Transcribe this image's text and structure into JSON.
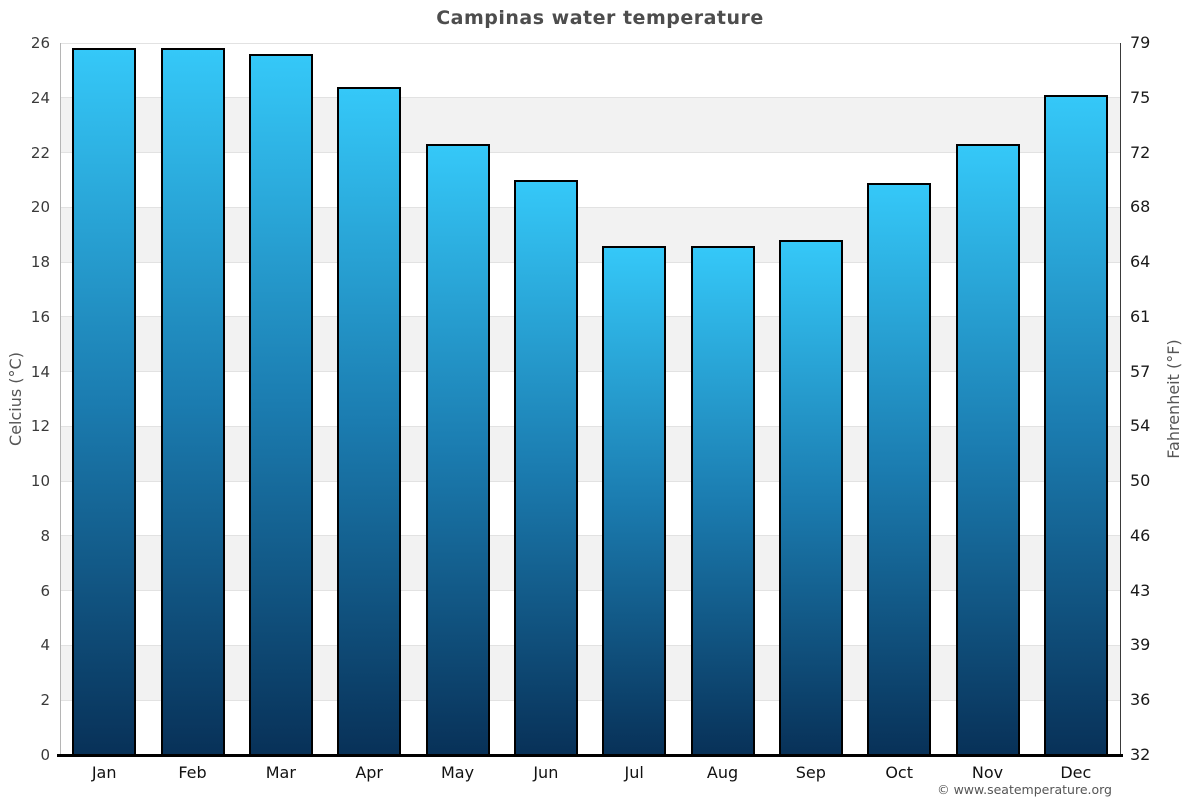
{
  "title": "Campinas water temperature",
  "footer": {
    "copyright": "© www.seatemperature.org"
  },
  "chart_data": {
    "type": "bar",
    "title": "Campinas water temperature",
    "categories": [
      "Jan",
      "Feb",
      "Mar",
      "Apr",
      "May",
      "Jun",
      "Jul",
      "Aug",
      "Sep",
      "Oct",
      "Nov",
      "Dec"
    ],
    "values": [
      25.8,
      25.8,
      25.6,
      24.4,
      22.3,
      21.0,
      18.6,
      18.6,
      18.8,
      20.9,
      22.3,
      24.1
    ],
    "xlabel": "",
    "ylabel_left": "Celcius (°C)",
    "ylabel_right": "Fahrenheit (°F)",
    "ylim": [
      0,
      26
    ],
    "ytick_step": 2,
    "yticks_celsius": [
      "0",
      "2",
      "4",
      "6",
      "8",
      "10",
      "12",
      "14",
      "16",
      "18",
      "20",
      "22",
      "24",
      "26"
    ],
    "yticks_fahrenheit": [
      "32",
      "36",
      "39",
      "43",
      "46",
      "50",
      "54",
      "57",
      "61",
      "64",
      "68",
      "72",
      "75",
      "79"
    ],
    "legend": "none",
    "grid": "alternating gray bands every 2°C with light gridlines",
    "colors": {
      "bar_gradient_top": "#35c8f8",
      "bar_gradient_mid": "#1b7cb0",
      "bar_gradient_bottom": "#083158",
      "bar_border": "#000000",
      "band_gray": "#f2f2f2",
      "gridline": "#e2e2e2",
      "baseline": "#000000",
      "left_axis_line": "#b5b5b5",
      "right_axis_line": "#3a3a3a",
      "title_text": "#4d4d4d",
      "axis_label_text": "#555555",
      "tick_text_left": "#3a3a3a",
      "tick_text_right": "#1a1a1a",
      "footer_text": "#555555",
      "background": "#ffffff"
    }
  }
}
